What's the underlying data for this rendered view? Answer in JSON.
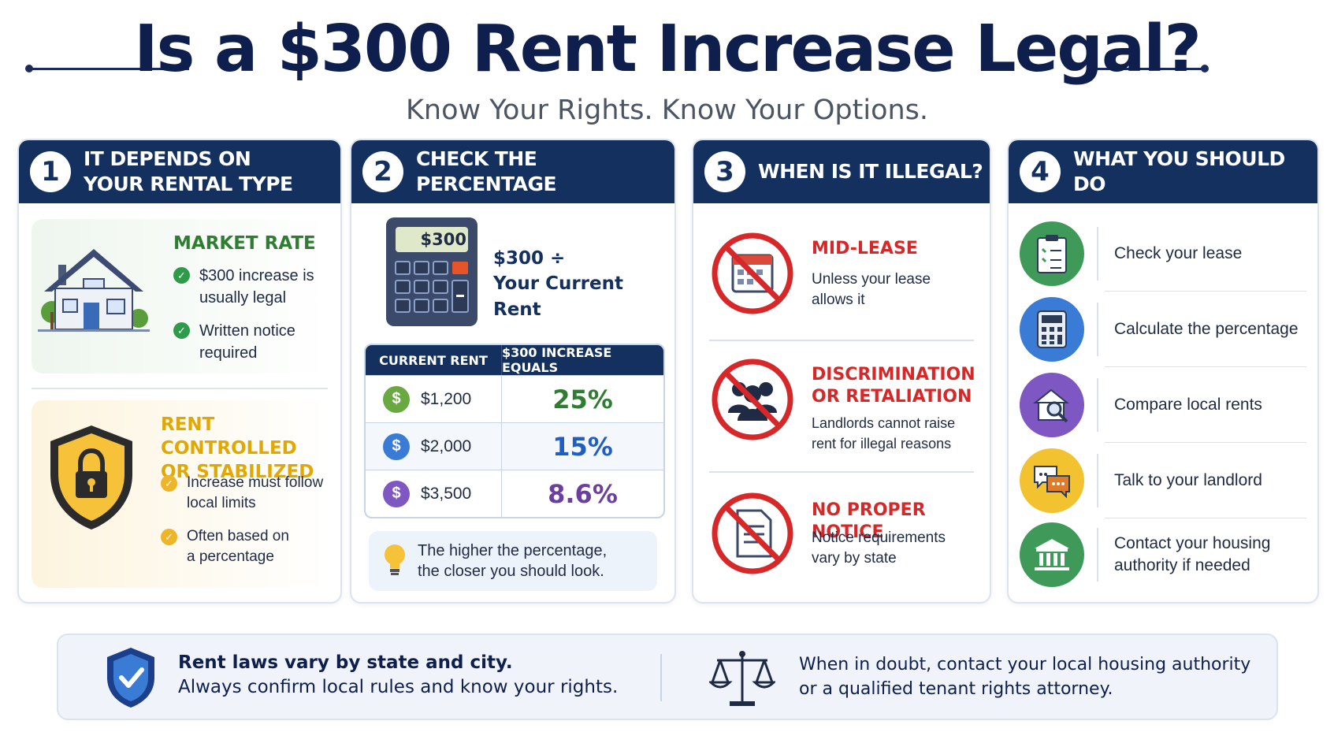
{
  "header": {
    "title": "Is a $300 Rent Increase Legal?",
    "subtitle": "Know Your Rights. Know Your Options."
  },
  "panels": [
    {
      "number": "1",
      "title": "IT DEPENDS ON\nYOUR RENTAL TYPE",
      "sections": [
        {
          "heading": "MARKET RATE",
          "color": "#2e7d32",
          "icon": "house-icon",
          "points": [
            "$300 increase is\nusually legal",
            "Written notice\nrequired"
          ]
        },
        {
          "heading": "RENT CONTROLLED\nOR STABILIZED",
          "color": "#e0a800",
          "icon": "shield-lock-icon",
          "points": [
            "Increase must follow\nlocal limits",
            "Often based on\na percentage"
          ]
        }
      ]
    },
    {
      "number": "2",
      "title": "CHECK THE PERCENTAGE",
      "calculator_display": "$300",
      "formula_line1": "$300 ÷",
      "formula_line2": "Your Current Rent",
      "table": {
        "col1": "CURRENT RENT",
        "col2": "$300 INCREASE EQUALS",
        "rows": [
          {
            "rent": "$1,200",
            "percent": "25%",
            "color": "#2e7d32",
            "coin": "#6aa842"
          },
          {
            "rent": "$2,000",
            "percent": "15%",
            "color": "#1f5fc4",
            "coin": "#3a7bd5"
          },
          {
            "rent": "$3,500",
            "percent": "8.6%",
            "color": "#6a3fa0",
            "coin": "#7e57c2"
          }
        ]
      },
      "tip": "The higher the percentage,\nthe closer you should look."
    },
    {
      "number": "3",
      "title": "WHEN IS IT ILLEGAL?",
      "items": [
        {
          "heading": "MID-LEASE",
          "desc": "Unless your lease\nallows it",
          "icon": "calendar-ban-icon"
        },
        {
          "heading": "DISCRIMINATION\nOR RETALIATION",
          "desc": "Landlords cannot raise\nrent for illegal reasons",
          "icon": "people-ban-icon"
        },
        {
          "heading": "NO PROPER NOTICE",
          "desc": "Notice requirements\nvary by state",
          "icon": "document-ban-icon"
        }
      ]
    },
    {
      "number": "4",
      "title": "WHAT YOU SHOULD DO",
      "steps": [
        {
          "label": "Check your lease",
          "color": "#3f9a5a",
          "icon": "clipboard-icon"
        },
        {
          "label": "Calculate the percentage",
          "color": "#3a7bd5",
          "icon": "calculator-icon"
        },
        {
          "label": "Compare local rents",
          "color": "#7e57c2",
          "icon": "house-search-icon"
        },
        {
          "label": "Talk to your landlord",
          "color": "#f2c230",
          "icon": "chat-bubbles-icon"
        },
        {
          "label": "Contact your housing\nauthority if needed",
          "color": "#3f9a5a",
          "icon": "government-building-icon"
        }
      ]
    }
  ],
  "footer": {
    "left_bold": "Rent laws vary by state and city.",
    "left_text": "Always confirm local rules and know your rights.",
    "right_text": "When in doubt, contact your local housing authority\nor a qualified tenant rights attorney."
  }
}
